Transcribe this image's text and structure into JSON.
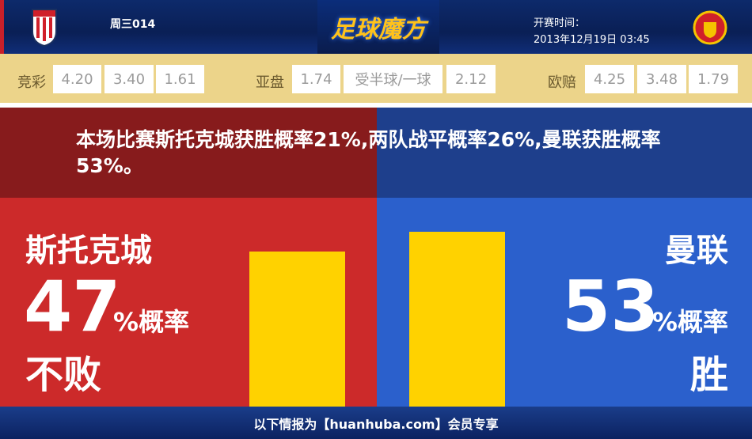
{
  "header": {
    "match_no": "周三014",
    "brand": "足球魔方",
    "kickoff_label": "开赛时间：",
    "kickoff_time": "2013年12月19日 03:45",
    "home_logo": "STOKE CITY",
    "away_logo": "MANCHESTER UNITED"
  },
  "odds": {
    "jingcai": {
      "label": "竞彩",
      "values": [
        "4.20",
        "3.40",
        "1.61"
      ]
    },
    "yapan": {
      "label": "亚盘",
      "values": [
        "1.74",
        "受半球/一球",
        "2.12"
      ]
    },
    "oupei": {
      "label": "欧赔",
      "values": [
        "4.25",
        "3.48",
        "1.79"
      ]
    }
  },
  "summary": "本场比赛斯托克城获胜概率21%,两队战平概率26%,曼联获胜概率53%。",
  "home": {
    "name": "斯托克城",
    "percent": "47",
    "unit": "%概率",
    "result": "不败",
    "value": 47
  },
  "away": {
    "name": "曼联",
    "percent": "53",
    "unit": "%概率",
    "result": "胜",
    "value": 53
  },
  "colors": {
    "home": "#cc2a2a",
    "away": "#2b60cc",
    "bar": "#ffd200"
  },
  "footer": "以下情报为【huanhuba.com】会员专享"
}
